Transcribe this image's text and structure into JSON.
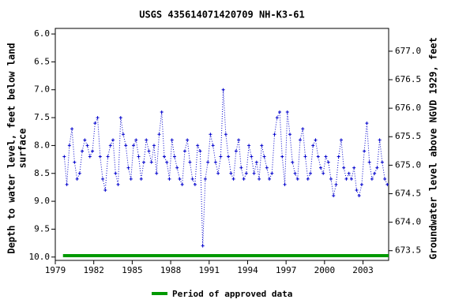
{
  "chart_data": {
    "type": "line",
    "title": "USGS 435614071420709 NH-K3-61",
    "y_label_lines": [
      "Depth to water level, feet below land",
      "surface"
    ],
    "y2_label": "Groundwater level above NGVD 1929, feet",
    "color": "#0000cc",
    "inverted_y": true,
    "xlim": [
      1979,
      2005
    ],
    "xticks": [
      1979,
      1982,
      1985,
      1988,
      1991,
      1994,
      1997,
      2000,
      2003
    ],
    "ylim": [
      5.9,
      10.06
    ],
    "yticks": [
      {
        "value": 6,
        "label": "6.0"
      },
      6.5,
      {
        "value": 7,
        "label": "7.0"
      },
      7.5,
      {
        "value": 8,
        "label": "8.0"
      },
      8.5,
      {
        "value": 9,
        "label": "9.0"
      },
      9.5,
      {
        "value": 10,
        "label": "10.0"
      }
    ],
    "y2lim": [
      673.33,
      677.4
    ],
    "y2ticks": [
      {
        "value": 673.5,
        "label": "673.5"
      },
      {
        "value": 674,
        "label": "674.0"
      },
      {
        "value": 674.5,
        "label": "674.5"
      },
      {
        "value": 675,
        "label": "675.0"
      },
      {
        "value": 675.5,
        "label": "675.5"
      },
      {
        "value": 676,
        "label": "676.0"
      },
      {
        "value": 676.5,
        "label": "676.5"
      },
      {
        "value": 677,
        "label": "677.0"
      }
    ],
    "x": [
      1979.7,
      1979.9,
      1980.1,
      1980.3,
      1980.5,
      1980.7,
      1980.9,
      1981.1,
      1981.3,
      1981.5,
      1981.7,
      1981.9,
      1982.1,
      1982.3,
      1982.5,
      1982.7,
      1982.9,
      1983.1,
      1983.3,
      1983.5,
      1983.7,
      1983.9,
      1984.1,
      1984.3,
      1984.5,
      1984.7,
      1984.9,
      1985.1,
      1985.3,
      1985.5,
      1985.7,
      1985.9,
      1986.1,
      1986.3,
      1986.5,
      1986.7,
      1986.9,
      1987.1,
      1987.3,
      1987.5,
      1987.7,
      1987.9,
      1988.1,
      1988.3,
      1988.5,
      1988.7,
      1988.9,
      1989.1,
      1989.3,
      1989.5,
      1989.7,
      1989.9,
      1990.1,
      1990.3,
      1990.5,
      1990.7,
      1990.9,
      1991.1,
      1991.3,
      1991.5,
      1991.7,
      1991.9,
      1992.1,
      1992.3,
      1992.5,
      1992.7,
      1992.9,
      1993.1,
      1993.3,
      1993.5,
      1993.7,
      1993.9,
      1994.1,
      1994.3,
      1994.5,
      1994.7,
      1994.9,
      1995.1,
      1995.3,
      1995.5,
      1995.7,
      1995.9,
      1996.1,
      1996.3,
      1996.5,
      1996.7,
      1996.9,
      1997.1,
      1997.3,
      1997.5,
      1997.7,
      1997.9,
      1998.1,
      1998.3,
      1998.5,
      1998.7,
      1998.9,
      1999.1,
      1999.3,
      1999.5,
      1999.7,
      1999.9,
      2000.1,
      2000.3,
      2000.5,
      2000.7,
      2000.9,
      2001.1,
      2001.3,
      2001.5,
      2001.7,
      2001.9,
      2002.1,
      2002.3,
      2002.5,
      2002.7,
      2002.9,
      2003.1,
      2003.3,
      2003.5,
      2003.7,
      2003.9,
      2004.1,
      2004.3,
      2004.5,
      2004.7,
      2004.9
    ],
    "values": [
      8.2,
      8.7,
      8.0,
      7.7,
      8.3,
      8.6,
      8.5,
      8.1,
      7.9,
      8.0,
      8.2,
      8.1,
      7.6,
      7.5,
      8.2,
      8.6,
      8.8,
      8.2,
      8.0,
      7.9,
      8.5,
      8.7,
      7.5,
      7.8,
      8.0,
      8.4,
      8.6,
      8.0,
      7.9,
      8.2,
      8.6,
      8.3,
      7.9,
      8.1,
      8.3,
      8.0,
      8.5,
      7.8,
      7.4,
      8.2,
      8.3,
      8.6,
      7.9,
      8.2,
      8.4,
      8.6,
      8.7,
      8.1,
      7.9,
      8.3,
      8.6,
      8.7,
      8.0,
      8.1,
      9.8,
      8.6,
      8.3,
      7.8,
      8.0,
      8.3,
      8.5,
      8.2,
      7.0,
      7.8,
      8.2,
      8.5,
      8.6,
      8.1,
      7.9,
      8.4,
      8.6,
      8.5,
      8.0,
      8.2,
      8.5,
      8.3,
      8.6,
      8.0,
      8.2,
      8.4,
      8.6,
      8.5,
      7.8,
      7.5,
      7.4,
      8.2,
      8.7,
      7.4,
      7.8,
      8.3,
      8.5,
      8.6,
      7.9,
      7.7,
      8.2,
      8.6,
      8.5,
      8.0,
      7.9,
      8.2,
      8.4,
      8.5,
      8.2,
      8.3,
      8.6,
      8.9,
      8.7,
      8.2,
      7.9,
      8.4,
      8.6,
      8.5,
      8.6,
      8.4,
      8.8,
      8.9,
      8.7,
      8.1,
      7.6,
      8.3,
      8.6,
      8.5,
      8.4,
      7.9,
      8.3,
      8.6,
      8.7
    ],
    "approved": {
      "name": "Period of approved data",
      "color": "#009900",
      "start": 1979.6,
      "end": 2005
    }
  }
}
